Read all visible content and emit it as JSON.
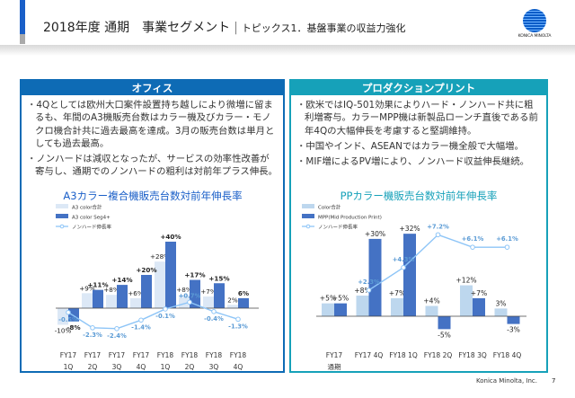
{
  "header": {
    "title_main": "2018年度 通期　事業セグメント",
    "title_sub": "トピックス1．基盤事業の収益力強化",
    "logo_text": "KONICA MINOLTA"
  },
  "office": {
    "heading": "オフィス",
    "bullets": [
      "4Qとしては欧州大口案件設置持ち越しにより微増に留まるも、年間のA3機販売台数はカラー機及びカラー・モノクロ機合計共に過去最高を達成。3月の販売台数は単月としても過去最高。",
      "ノンハードは減収となったが、サービスの効率性改善が寄与し、通期でのノンハードの粗利は対前年プラス伸長。"
    ]
  },
  "production": {
    "heading": "プロダクションプリント",
    "bullets": [
      "欧米ではIQ-501効果によりハード・ノンハード共に粗利増寄与。カラーMPP機は新製品ローンチ直後である前年4Qの大幅伸長を考慮すると堅調維持。",
      "中国やインド、ASEANではカラー機全般で大幅増。",
      "MIF増によるPV増により、ノンハード収益伸長継続。"
    ]
  },
  "chart_data": [
    {
      "type": "bar",
      "title": "A3カラー複合機販売台数対前年伸長率",
      "categories": [
        [
          "FY17",
          "1Q"
        ],
        [
          "FY17",
          "2Q"
        ],
        [
          "FY17",
          "3Q"
        ],
        [
          "FY17",
          "4Q"
        ],
        [
          "FY18",
          "1Q"
        ],
        [
          "FY18",
          "2Q"
        ],
        [
          "FY18",
          "3Q"
        ],
        [
          "FY18",
          "4Q"
        ]
      ],
      "series": [
        {
          "name": "A3 color合計",
          "kind": "bar",
          "color": "#dce8f6",
          "values": [
            -10,
            9,
            8,
            6,
            28,
            8,
            7,
            2
          ],
          "labels": [
            "-10%",
            "+9%",
            "+8%",
            "+6%",
            "+28%",
            "+8%",
            "+7%",
            "2%"
          ]
        },
        {
          "name": "A3 color Seg4+",
          "kind": "bar",
          "color": "#4472c4",
          "values": [
            -8,
            11,
            14,
            20,
            40,
            17,
            15,
            6
          ],
          "labels": [
            "-8%",
            "+11%",
            "+14%",
            "+20%",
            "+40%",
            "+17%",
            "+15%",
            "6%"
          ]
        },
        {
          "name": "ノンハード伸長率",
          "kind": "line",
          "color": "#8ec5f7",
          "values": [
            -0.5,
            -2.3,
            -2.4,
            -1.4,
            -0.1,
            0.7,
            -0.4,
            -1.3
          ],
          "labels": [
            "-0.5%",
            "-2.3%",
            "-2.4%",
            "-1.4%",
            "-0.1%",
            "+0.7%",
            "-0.4%",
            "-1.3%"
          ]
        }
      ]
    },
    {
      "type": "bar",
      "title": "PPカラー機販売台数対前年伸長率",
      "categories": [
        [
          "FY17",
          "通期"
        ],
        [
          "FY17 4Q",
          ""
        ],
        [
          "FY18 1Q",
          ""
        ],
        [
          "FY18 2Q",
          ""
        ],
        [
          "FY18 3Q",
          ""
        ],
        [
          "FY18 4Q",
          ""
        ]
      ],
      "series": [
        {
          "name": "Color合計",
          "kind": "bar",
          "color": "#bdd7ee",
          "values": [
            5,
            8,
            7,
            4,
            12,
            3
          ],
          "labels": [
            "+5%",
            "+8%",
            "+7%",
            "+4%",
            "+12%",
            "3%"
          ]
        },
        {
          "name": "MPP(Mid Production Print)",
          "kind": "bar",
          "color": "#4472c4",
          "values": [
            5,
            30,
            32,
            -5,
            7,
            -3
          ],
          "labels": [
            "+5%",
            "+30%",
            "+32%",
            "-5%",
            "+7%",
            "-3%"
          ]
        },
        {
          "name": "ノンハード伸長率",
          "kind": "line",
          "color": "#8ec5f7",
          "values": [
            null,
            2.3,
            4.3,
            7.2,
            6.1,
            6.1
          ],
          "labels": [
            "",
            "+2.3%",
            "+4.3%",
            "+7.2%",
            "+6.1%",
            "+6.1%"
          ]
        }
      ]
    }
  ],
  "footer": {
    "company": "Konica Minolta, Inc.",
    "page": "7"
  }
}
